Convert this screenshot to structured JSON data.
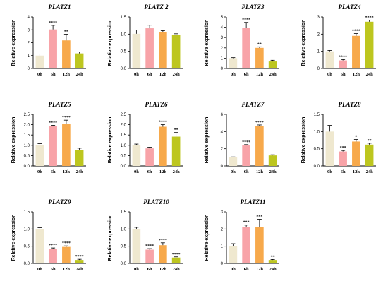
{
  "colors": [
    "#efe8cf",
    "#f8a3a8",
    "#f7a94b",
    "#bdc61f"
  ],
  "chart_data": [
    {
      "type": "bar",
      "title": "PLATZ1",
      "ylabel": "Relative expression",
      "categories": [
        "0h",
        "6h",
        "12h",
        "24h"
      ],
      "values": [
        1.0,
        3.03,
        2.18,
        1.17
      ],
      "errors": [
        0.12,
        0.32,
        0.48,
        0.12
      ],
      "significance": [
        "",
        "****",
        "**",
        ""
      ],
      "ylim": [
        0,
        4
      ],
      "yticks": [
        "0",
        "1",
        "2",
        "3",
        "4"
      ]
    },
    {
      "type": "bar",
      "title": "PLATZ 2",
      "ylabel": "Relative expression",
      "categories": [
        "0h",
        "6h",
        "12h",
        "24h"
      ],
      "values": [
        1.01,
        1.17,
        1.05,
        0.97
      ],
      "errors": [
        0.11,
        0.09,
        0.05,
        0.04
      ],
      "significance": [
        "",
        "",
        "",
        ""
      ],
      "ylim": [
        0,
        1.5
      ],
      "yticks": [
        "0.0",
        "0.5",
        "1.0",
        "1.5"
      ]
    },
    {
      "type": "bar",
      "title": "PLATZ3",
      "ylabel": "Relative expression",
      "categories": [
        "0h",
        "6h",
        "12h",
        "24h"
      ],
      "values": [
        1.0,
        3.92,
        2.0,
        0.68
      ],
      "errors": [
        0.05,
        0.55,
        0.1,
        0.12
      ],
      "significance": [
        "",
        "****",
        "**",
        ""
      ],
      "ylim": [
        0,
        5
      ],
      "yticks": [
        "0",
        "1",
        "2",
        "3",
        "4",
        "5"
      ]
    },
    {
      "type": "bar",
      "title": "PLATZ4",
      "ylabel": "Relative expression",
      "categories": [
        "0h",
        "6h",
        "12h",
        "24h"
      ],
      "values": [
        1.0,
        0.47,
        1.9,
        2.72
      ],
      "errors": [
        0.05,
        0.05,
        0.13,
        0.1
      ],
      "significance": [
        "",
        "****",
        "****",
        "****"
      ],
      "ylim": [
        0,
        3
      ],
      "yticks": [
        "0",
        "1",
        "2",
        "3"
      ]
    },
    {
      "type": "bar",
      "title": "PLATZ5",
      "ylabel": "Relative expression",
      "categories": [
        "0h",
        "6h",
        "12h",
        "24h"
      ],
      "values": [
        1.0,
        1.92,
        2.02,
        0.77
      ],
      "errors": [
        0.08,
        0.05,
        0.2,
        0.09
      ],
      "significance": [
        "",
        "****",
        "****",
        ""
      ],
      "ylim": [
        0,
        2.5
      ],
      "yticks": [
        "0.0",
        "0.5",
        "1.0",
        "1.5",
        "2.0",
        "2.5"
      ]
    },
    {
      "type": "bar",
      "title": "PLATZ6",
      "ylabel": "Relative expression",
      "categories": [
        "0h",
        "6h",
        "12h",
        "24h"
      ],
      "values": [
        1.0,
        0.85,
        1.9,
        1.42
      ],
      "errors": [
        0.06,
        0.06,
        0.1,
        0.2
      ],
      "significance": [
        "",
        "",
        "****",
        "**"
      ],
      "ylim": [
        0,
        2.5
      ],
      "yticks": [
        "0.0",
        "0.5",
        "1.0",
        "1.5",
        "2.0",
        "2.5"
      ]
    },
    {
      "type": "bar",
      "title": "PLATZ7",
      "ylabel": "Relative expression",
      "categories": [
        "0h",
        "6h",
        "12h",
        "24h"
      ],
      "values": [
        1.0,
        2.38,
        4.65,
        1.22
      ],
      "errors": [
        0.05,
        0.1,
        0.12,
        0.08
      ],
      "significance": [
        "",
        "****",
        "****",
        ""
      ],
      "ylim": [
        0,
        6
      ],
      "yticks": [
        "0",
        "2",
        "4",
        "6"
      ]
    },
    {
      "type": "bar",
      "title": "PLATZ8",
      "ylabel": "Relative expression",
      "categories": [
        "0h",
        "6h",
        "12h",
        "24h"
      ],
      "values": [
        1.0,
        0.42,
        0.71,
        0.62
      ],
      "errors": [
        0.18,
        0.03,
        0.06,
        0.04
      ],
      "significance": [
        "",
        "***",
        "*",
        "**"
      ],
      "ylim": [
        0,
        1.5
      ],
      "yticks": [
        "0.0",
        "0.5",
        "1.0",
        "1.5"
      ]
    },
    {
      "type": "bar",
      "title": "PLATZ9",
      "ylabel": "Relative expression",
      "categories": [
        "0h",
        "6h",
        "12h",
        "24h"
      ],
      "values": [
        1.0,
        0.42,
        0.48,
        0.1
      ],
      "errors": [
        0.04,
        0.03,
        0.03,
        0.02
      ],
      "significance": [
        "",
        "****",
        "****",
        "****"
      ],
      "ylim": [
        0,
        1.5
      ],
      "yticks": [
        "0.0",
        "0.5",
        "1.0",
        "1.5"
      ]
    },
    {
      "type": "bar",
      "title": "PLATZ10",
      "ylabel": "Relative expression",
      "categories": [
        "0h",
        "6h",
        "12h",
        "24h"
      ],
      "values": [
        1.0,
        0.4,
        0.53,
        0.17
      ],
      "errors": [
        0.05,
        0.03,
        0.07,
        0.02
      ],
      "significance": [
        "",
        "****",
        "****",
        "****"
      ],
      "ylim": [
        0,
        1.5
      ],
      "yticks": [
        "0.0",
        "0.5",
        "1.0",
        "1.5"
      ]
    },
    {
      "type": "bar",
      "title": "PLATZ11",
      "ylabel": "Relative expression",
      "categories": [
        "0h",
        "6h",
        "12h",
        "24h"
      ],
      "values": [
        1.0,
        2.1,
        2.12,
        0.2
      ],
      "errors": [
        0.15,
        0.13,
        0.45,
        0.03
      ],
      "significance": [
        "",
        "***",
        "***",
        "**"
      ],
      "ylim": [
        0,
        3
      ],
      "yticks": [
        "0",
        "1",
        "2",
        "3"
      ]
    }
  ]
}
